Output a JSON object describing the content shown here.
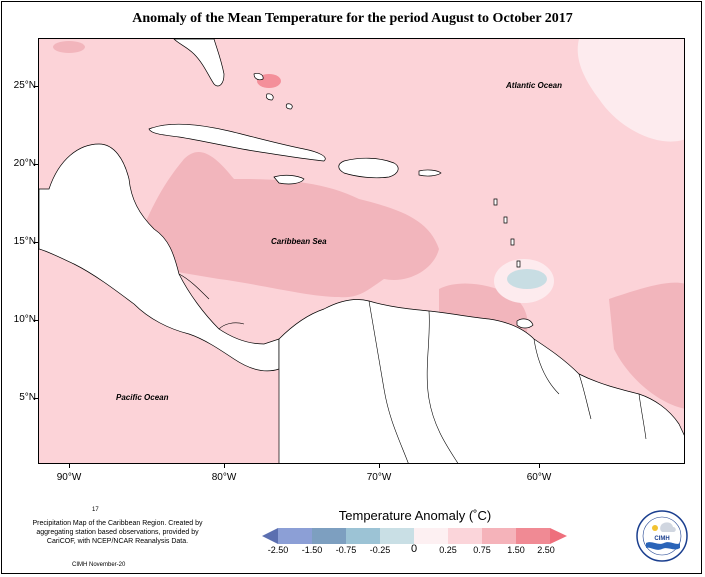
{
  "title": "Anomaly of the Mean Temperature for the period August to October 2017",
  "map": {
    "latitude_labels": [
      "25°N",
      "20°N",
      "15°N",
      "10°N",
      "5°N"
    ],
    "longitude_labels": [
      "90°W",
      "80°W",
      "70°W",
      "60°W"
    ],
    "region_labels": {
      "atlantic": "Atlantic Ocean",
      "caribbean": "Caribbean Sea",
      "pacific": "Pacific Ocean"
    },
    "colors": {
      "ocean_base": "#fcd3d8",
      "warm_1": "#f2b5bc",
      "warm_2": "#f48f9a",
      "neutral": "#fdebee",
      "cool": "#c8dde3",
      "land": "#ffffff"
    }
  },
  "legend": {
    "title": "Temperature Anomaly (˚C)",
    "ticks": [
      "-2.50",
      "-1.50",
      "-0.75",
      "-0.25",
      "0",
      "0.25",
      "0.75",
      "1.50",
      "2.50"
    ],
    "colors": [
      "#5b6fb0",
      "#8c9fd6",
      "#7d9fc0",
      "#9cc3d5",
      "#c9dfe5",
      "#fdf0f2",
      "#fbd5da",
      "#f5b3ba",
      "#f08a94",
      "#ee6f7c"
    ]
  },
  "notes": {
    "number": "17",
    "text": "Precipitation Map of the Caribbean Region. Created by aggregating station based observations, provided by CariCOF, with NCEP/NCAR Reanalysis Data.",
    "credit": "CIMH November-20"
  },
  "logo": {
    "icon": "cimh-logo-icon",
    "text": "CIMH"
  }
}
